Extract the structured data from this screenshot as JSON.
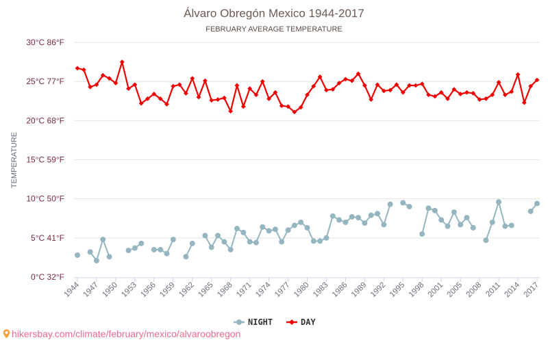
{
  "chart_data": {
    "type": "line",
    "title": "Álvaro Obregón Mexico 1944-2017",
    "subtitle": "FEBRUARY AVERAGE TEMPERATURE",
    "ylabel": "TEMPERATURE",
    "xlabel": "",
    "ylim": [
      0,
      30
    ],
    "grid": true,
    "legend_position": "bottom-center",
    "y_ticks": [
      {
        "value": 0,
        "label": "0°C 32°F"
      },
      {
        "value": 5,
        "label": "5°C 41°F"
      },
      {
        "value": 10,
        "label": "10°C 50°F"
      },
      {
        "value": 15,
        "label": "15°C 59°F"
      },
      {
        "value": 20,
        "label": "20°C 68°F"
      },
      {
        "value": 25,
        "label": "25°C 77°F"
      },
      {
        "value": 30,
        "label": "30°C 86°F"
      }
    ],
    "x_tick_labels": [
      "1944",
      "1947",
      "1950",
      "1953",
      "1956",
      "1959",
      "1962",
      "1965",
      "1968",
      "1971",
      "1974",
      "1977",
      "1980",
      "1983",
      "1986",
      "1989",
      "1992",
      "1995",
      "1998",
      "2001",
      "2005",
      "2008",
      "2011",
      "2014",
      "2017"
    ],
    "x_tick_every": 3,
    "categories": [
      "1944",
      "1945",
      "1946",
      "1947",
      "1948",
      "1949",
      "1950",
      "1951",
      "1952",
      "1953",
      "1954",
      "1955",
      "1956",
      "1957",
      "1958",
      "1959",
      "1960",
      "1961",
      "1962",
      "1963",
      "1964",
      "1965",
      "1966",
      "1967",
      "1968",
      "1969",
      "1970",
      "1971",
      "1972",
      "1973",
      "1974",
      "1975",
      "1976",
      "1977",
      "1978",
      "1979",
      "1980",
      "1981",
      "1982",
      "1983",
      "1984",
      "1985",
      "1986",
      "1987",
      "1988",
      "1989",
      "1990",
      "1991",
      "1992",
      "1993",
      "1994",
      "1995",
      "1996",
      "1997",
      "1998",
      "1999",
      "2000",
      "2001",
      "2002",
      "2003",
      "2005",
      "2006",
      "2007",
      "2008",
      "2009",
      "2010",
      "2011",
      "2012",
      "2013",
      "2014",
      "2015",
      "2016",
      "2017"
    ],
    "series": [
      {
        "name": "NIGHT",
        "color": "#95b5c0",
        "values": [
          2.8,
          null,
          3.2,
          2.1,
          4.8,
          2.6,
          null,
          null,
          3.4,
          3.7,
          4.3,
          null,
          3.5,
          3.5,
          3.0,
          4.8,
          null,
          2.6,
          4.3,
          null,
          5.3,
          3.8,
          5.3,
          4.5,
          3.5,
          6.2,
          5.7,
          4.5,
          4.4,
          6.4,
          5.9,
          6.1,
          4.5,
          6.0,
          6.6,
          7.0,
          6.3,
          4.6,
          4.6,
          5.0,
          7.8,
          7.3,
          7.0,
          7.7,
          7.6,
          6.9,
          7.9,
          8.1,
          6.7,
          9.3,
          null,
          9.5,
          9.0,
          null,
          5.5,
          8.8,
          8.5,
          7.3,
          6.5,
          8.3,
          6.7,
          7.6,
          6.3,
          null,
          4.7,
          7.0,
          9.6,
          6.5,
          6.6,
          null,
          null,
          8.4,
          9.4
        ]
      },
      {
        "name": "DAY",
        "color": "#ee0000",
        "values": [
          26.7,
          26.5,
          24.3,
          24.6,
          25.8,
          25.4,
          24.8,
          27.5,
          24.1,
          24.6,
          22.2,
          22.8,
          23.4,
          22.8,
          22.1,
          24.4,
          24.6,
          23.5,
          25.4,
          23.0,
          25.1,
          22.6,
          22.7,
          22.9,
          21.2,
          24.5,
          21.8,
          24.1,
          23.3,
          25.0,
          22.8,
          23.6,
          21.9,
          21.8,
          21.1,
          21.7,
          23.3,
          24.4,
          25.6,
          23.9,
          24.0,
          24.8,
          25.3,
          25.1,
          26.0,
          24.5,
          22.7,
          24.6,
          23.8,
          23.9,
          24.6,
          23.6,
          24.5,
          24.5,
          24.7,
          23.3,
          23.1,
          23.6,
          22.8,
          24.0,
          23.4,
          23.6,
          23.5,
          22.7,
          22.8,
          23.3,
          24.9,
          23.3,
          23.7,
          25.9,
          22.3,
          24.4,
          25.2
        ]
      }
    ],
    "legend": [
      {
        "label": "NIGHT",
        "color": "#95b5c0",
        "marker": "circle"
      },
      {
        "label": "DAY",
        "color": "#ee0000",
        "marker": "diamond"
      }
    ]
  },
  "footer": {
    "icon": "location-pin-icon",
    "text": "hikersbay.com/climate/february/mexico/alvaroobregon"
  }
}
